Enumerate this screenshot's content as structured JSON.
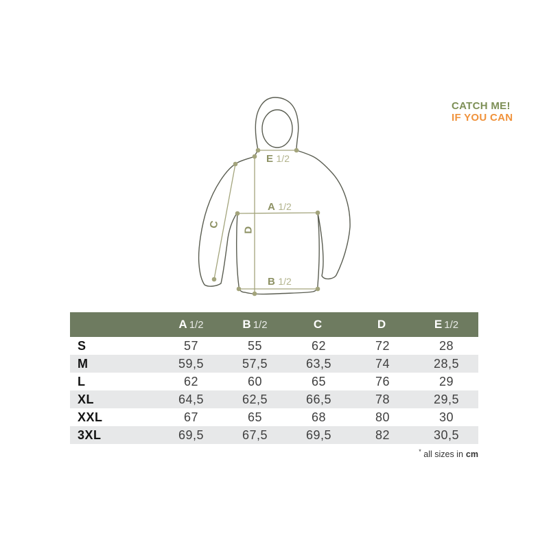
{
  "brand": {
    "line1": "CATCH ME!",
    "line2": "IF YOU CAN"
  },
  "diagram": {
    "labels": {
      "e": {
        "letter": "E",
        "fraction": "1/2"
      },
      "a": {
        "letter": "A",
        "fraction": "1/2"
      },
      "b": {
        "letter": "B",
        "fraction": "1/2"
      },
      "c": {
        "letter": "C"
      },
      "d": {
        "letter": "D"
      }
    }
  },
  "table": {
    "columns": [
      {
        "letter": "A",
        "fraction": "1/2"
      },
      {
        "letter": "B",
        "fraction": "1/2"
      },
      {
        "letter": "C",
        "fraction": ""
      },
      {
        "letter": "D",
        "fraction": ""
      },
      {
        "letter": "E",
        "fraction": "1/2"
      }
    ],
    "rows": [
      {
        "size": "S",
        "values": [
          "57",
          "55",
          "62",
          "72",
          "28"
        ]
      },
      {
        "size": "M",
        "values": [
          "59,5",
          "57,5",
          "63,5",
          "74",
          "28,5"
        ]
      },
      {
        "size": "L",
        "values": [
          "62",
          "60",
          "65",
          "76",
          "29"
        ]
      },
      {
        "size": "XL",
        "values": [
          "64,5",
          "62,5",
          "66,5",
          "78",
          "29,5"
        ]
      },
      {
        "size": "XXL",
        "values": [
          "67",
          "65",
          "68",
          "80",
          "30"
        ]
      },
      {
        "size": "3XL",
        "values": [
          "69,5",
          "67,5",
          "69,5",
          "82",
          "30,5"
        ]
      }
    ],
    "footnote": {
      "star": "*",
      "text": "all sizes in",
      "unit": "cm"
    }
  },
  "colors": {
    "header_green": "#6e7b60",
    "zebra_gray": "#e7e8e9",
    "measure_olive": "#a3a47c",
    "label_olive_bold": "#8d9164",
    "label_olive_light": "#b2b38c",
    "jacket_outline": "#5a5d51",
    "brand_green": "#7d8f56",
    "brand_orange": "#f0923b",
    "value_text": "#3f3f3f"
  }
}
